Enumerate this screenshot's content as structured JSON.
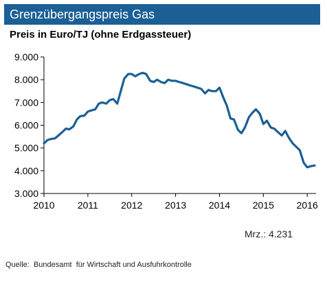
{
  "title": "Grenzübergangspreis Gas",
  "subtitle": "Preis in Euro/TJ (ohne Erdgassteuer)",
  "latest_label": "Mrz.: 4.231",
  "source": "Quelle:  Bundesamt  für Wirtschaft und Ausfuhrkontrolle",
  "colors": {
    "title_bg": "#1b5f94",
    "line": "#1b5f94",
    "text": "#000000"
  },
  "chart_data": {
    "type": "line",
    "title": "Grenzübergangspreis Gas",
    "subtitle": "Preis in Euro/TJ (ohne Erdgassteuer)",
    "xlabel": "",
    "ylabel": "",
    "xlim": [
      2010,
      2016.2
    ],
    "ylim": [
      3000,
      9000
    ],
    "y_ticks": [
      3000,
      4000,
      5000,
      6000,
      7000,
      8000,
      9000
    ],
    "y_tick_labels": [
      "3.000",
      "4.000",
      "5.000",
      "6.000",
      "7.000",
      "8.000",
      "9.000"
    ],
    "x_ticks": [
      2010,
      2011,
      2012,
      2013,
      2014,
      2015,
      2016
    ],
    "x_tick_labels": [
      "2010",
      "2011",
      "2012",
      "2013",
      "2014",
      "2015",
      "2016"
    ],
    "grid": false,
    "series": [
      {
        "x": [
          2010.0,
          2010.08,
          2010.17,
          2010.25,
          2010.33,
          2010.42,
          2010.5,
          2010.58,
          2010.67,
          2010.75,
          2010.83,
          2010.92,
          2011.0,
          2011.08,
          2011.17,
          2011.25,
          2011.33,
          2011.42,
          2011.5,
          2011.58,
          2011.67,
          2011.75,
          2011.83,
          2011.92,
          2012.0,
          2012.08,
          2012.17,
          2012.25,
          2012.33,
          2012.42,
          2012.5,
          2012.58,
          2012.67,
          2012.75,
          2012.83,
          2012.92,
          2013.0,
          2013.08,
          2013.17,
          2013.25,
          2013.33,
          2013.42,
          2013.5,
          2013.58,
          2013.67,
          2013.75,
          2013.83,
          2013.92,
          2014.0,
          2014.08,
          2014.17,
          2014.25,
          2014.33,
          2014.42,
          2014.5,
          2014.58,
          2014.67,
          2014.75,
          2014.83,
          2014.92,
          2015.0,
          2015.08,
          2015.17,
          2015.25,
          2015.33,
          2015.42,
          2015.5,
          2015.58,
          2015.67,
          2015.75,
          2015.83,
          2015.92,
          2016.0,
          2016.08,
          2016.17
        ],
        "values": [
          5200,
          5350,
          5400,
          5420,
          5550,
          5700,
          5850,
          5820,
          5950,
          6250,
          6400,
          6420,
          6600,
          6650,
          6700,
          6950,
          7000,
          6950,
          7100,
          7150,
          6950,
          7500,
          8050,
          8250,
          8250,
          8150,
          8250,
          8300,
          8250,
          7950,
          7900,
          8000,
          7900,
          7850,
          8000,
          7950,
          7950,
          7900,
          7850,
          7800,
          7750,
          7700,
          7650,
          7600,
          7400,
          7550,
          7500,
          7500,
          7650,
          7250,
          6850,
          6300,
          6250,
          5800,
          5650,
          5900,
          6350,
          6550,
          6700,
          6500,
          6050,
          6200,
          5900,
          5850,
          5700,
          5550,
          5750,
          5450,
          5200,
          5050,
          4900,
          4350,
          4150,
          4200,
          4231
        ]
      }
    ]
  }
}
